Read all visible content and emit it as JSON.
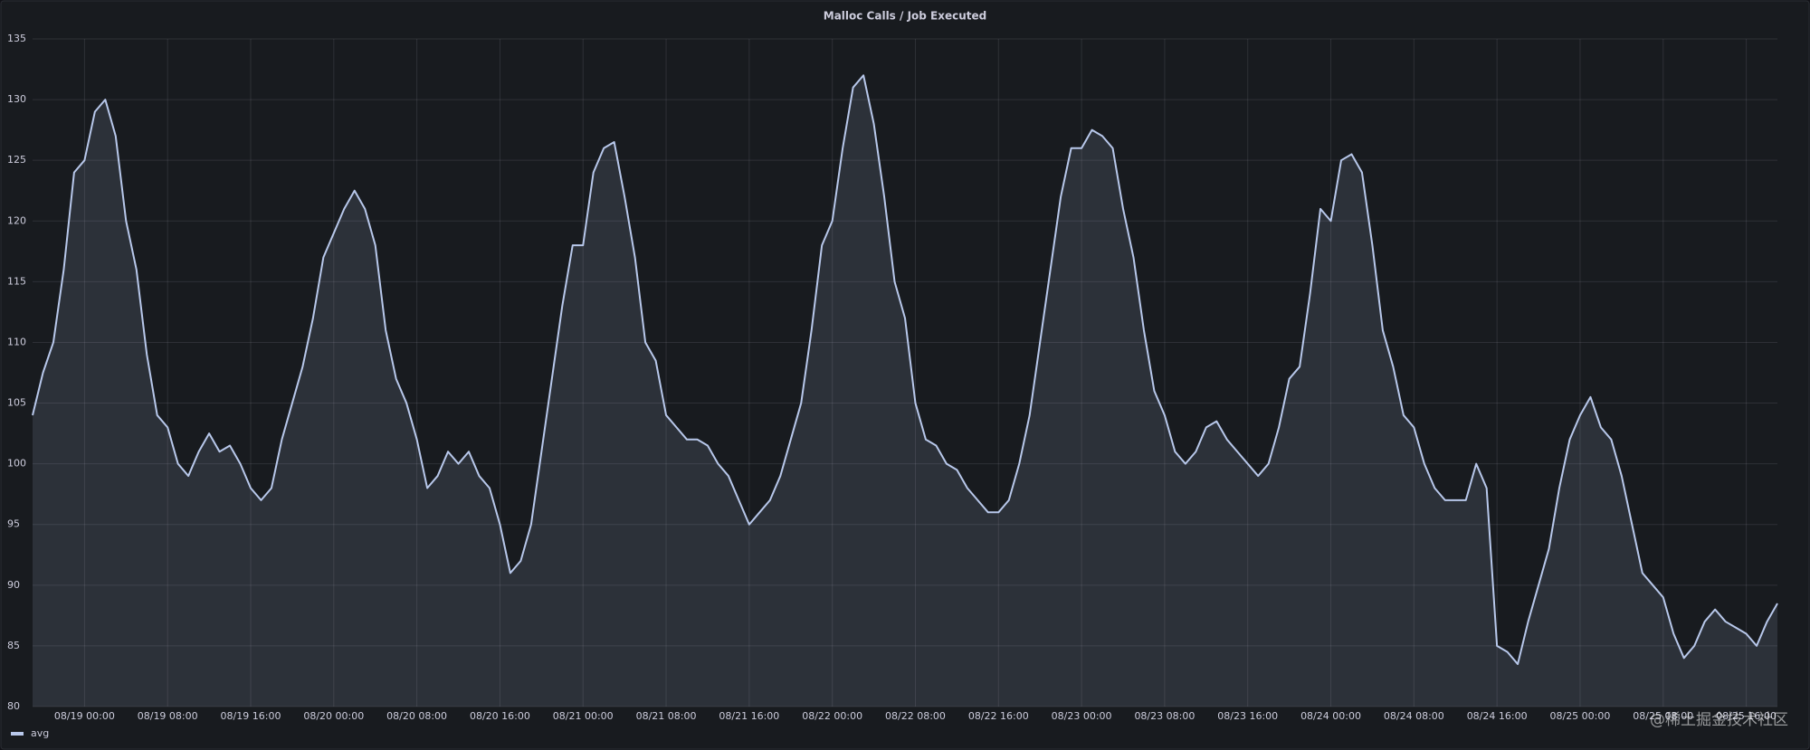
{
  "chart_data": {
    "type": "line",
    "title": "Malloc Calls / Job Executed",
    "x": [
      "08/18 19:00",
      "08/18 20:00",
      "08/18 21:00",
      "08/18 22:00",
      "08/18 23:00",
      "08/19 00:00",
      "08/19 01:00",
      "08/19 02:00",
      "08/19 03:00",
      "08/19 04:00",
      "08/19 05:00",
      "08/19 06:00",
      "08/19 07:00",
      "08/19 08:00",
      "08/19 09:00",
      "08/19 10:00",
      "08/19 11:00",
      "08/19 12:00",
      "08/19 13:00",
      "08/19 14:00",
      "08/19 15:00",
      "08/19 16:00",
      "08/19 17:00",
      "08/19 18:00",
      "08/19 19:00",
      "08/19 20:00",
      "08/19 21:00",
      "08/19 22:00",
      "08/19 23:00",
      "08/20 00:00",
      "08/20 01:00",
      "08/20 02:00",
      "08/20 03:00",
      "08/20 04:00",
      "08/20 05:00",
      "08/20 06:00",
      "08/20 07:00",
      "08/20 08:00",
      "08/20 09:00",
      "08/20 10:00",
      "08/20 11:00",
      "08/20 12:00",
      "08/20 13:00",
      "08/20 14:00",
      "08/20 15:00",
      "08/20 16:00",
      "08/20 17:00",
      "08/20 18:00",
      "08/20 19:00",
      "08/20 20:00",
      "08/20 21:00",
      "08/20 22:00",
      "08/20 23:00",
      "08/21 00:00",
      "08/21 01:00",
      "08/21 02:00",
      "08/21 03:00",
      "08/21 04:00",
      "08/21 05:00",
      "08/21 06:00",
      "08/21 07:00",
      "08/21 08:00",
      "08/21 09:00",
      "08/21 10:00",
      "08/21 11:00",
      "08/21 12:00",
      "08/21 13:00",
      "08/21 14:00",
      "08/21 15:00",
      "08/21 16:00",
      "08/21 17:00",
      "08/21 18:00",
      "08/21 19:00",
      "08/21 20:00",
      "08/21 21:00",
      "08/21 22:00",
      "08/21 23:00",
      "08/22 00:00",
      "08/22 01:00",
      "08/22 02:00",
      "08/22 03:00",
      "08/22 04:00",
      "08/22 05:00",
      "08/22 06:00",
      "08/22 07:00",
      "08/22 08:00",
      "08/22 09:00",
      "08/22 10:00",
      "08/22 11:00",
      "08/22 12:00",
      "08/22 13:00",
      "08/22 14:00",
      "08/22 15:00",
      "08/22 16:00",
      "08/22 17:00",
      "08/22 18:00",
      "08/22 19:00",
      "08/22 20:00",
      "08/22 21:00",
      "08/22 22:00",
      "08/22 23:00",
      "08/23 00:00",
      "08/23 01:00",
      "08/23 02:00",
      "08/23 03:00",
      "08/23 04:00",
      "08/23 05:00",
      "08/23 06:00",
      "08/23 07:00",
      "08/23 08:00",
      "08/23 09:00",
      "08/23 10:00",
      "08/23 11:00",
      "08/23 12:00",
      "08/23 13:00",
      "08/23 14:00",
      "08/23 15:00",
      "08/23 16:00",
      "08/23 17:00",
      "08/23 18:00",
      "08/23 19:00",
      "08/23 20:00",
      "08/23 21:00",
      "08/23 22:00",
      "08/23 23:00",
      "08/24 00:00",
      "08/24 01:00",
      "08/24 02:00",
      "08/24 03:00",
      "08/24 04:00",
      "08/24 05:00",
      "08/24 06:00",
      "08/24 07:00",
      "08/24 08:00",
      "08/24 09:00",
      "08/24 10:00",
      "08/24 11:00",
      "08/24 12:00",
      "08/24 13:00",
      "08/24 14:00",
      "08/24 15:00",
      "08/24 16:00",
      "08/24 17:00",
      "08/24 18:00",
      "08/24 19:00",
      "08/24 20:00",
      "08/24 21:00",
      "08/24 22:00",
      "08/24 23:00",
      "08/25 00:00",
      "08/25 01:00",
      "08/25 02:00",
      "08/25 03:00",
      "08/25 04:00",
      "08/25 05:00",
      "08/25 06:00",
      "08/25 07:00",
      "08/25 08:00",
      "08/25 09:00",
      "08/25 10:00",
      "08/25 11:00",
      "08/25 12:00",
      "08/25 13:00",
      "08/25 14:00",
      "08/25 15:00",
      "08/25 16:00",
      "08/25 17:00",
      "08/25 18:00",
      "08/25 19:00"
    ],
    "series": [
      {
        "name": "avg",
        "color": "#b8c8eb",
        "values": [
          104,
          107.5,
          110,
          116,
          124,
          125,
          129,
          130,
          127,
          120,
          116,
          109,
          104,
          103,
          100,
          99,
          101,
          102.5,
          101,
          101.5,
          100,
          98,
          97,
          98,
          102,
          105,
          108,
          112,
          117,
          119,
          121,
          122.5,
          121,
          118,
          111,
          107,
          105,
          102,
          98,
          99,
          101,
          100,
          101,
          99,
          98,
          95,
          91,
          92,
          95,
          101,
          107,
          113,
          118,
          118,
          124,
          126,
          126.5,
          122,
          117,
          110,
          108.5,
          104,
          103,
          102,
          102,
          101.5,
          100,
          99,
          97,
          95,
          96,
          97,
          99,
          102,
          105,
          111,
          118,
          120,
          126,
          131,
          132,
          128,
          122,
          115,
          112,
          105,
          102,
          101.5,
          100,
          99.5,
          98,
          97,
          96,
          96,
          97,
          100,
          104,
          110,
          116,
          122,
          126,
          126,
          127.5,
          127,
          126,
          121,
          117,
          111,
          106,
          104,
          101,
          100,
          101,
          103,
          103.5,
          102,
          101,
          100,
          99,
          100,
          103,
          107,
          108,
          114,
          121,
          120,
          125,
          125.5,
          124,
          118,
          111,
          108,
          104,
          103,
          100,
          98,
          97,
          97,
          97,
          100,
          98,
          85,
          84.5,
          83.5,
          87,
          90,
          93,
          98,
          102,
          104,
          105.5,
          103,
          102,
          99,
          95,
          91,
          90,
          89,
          86,
          84,
          85,
          87,
          88,
          87,
          86.5,
          86,
          85,
          87,
          88.5
        ]
      }
    ],
    "xlim": [
      "08/18 19:00",
      "08/25 19:00"
    ],
    "xticks": [
      "08/19 00:00",
      "08/19 08:00",
      "08/19 16:00",
      "08/20 00:00",
      "08/20 08:00",
      "08/20 16:00",
      "08/21 00:00",
      "08/21 08:00",
      "08/21 16:00",
      "08/22 00:00",
      "08/22 08:00",
      "08/22 16:00",
      "08/23 00:00",
      "08/23 08:00",
      "08/23 16:00",
      "08/24 00:00",
      "08/24 08:00",
      "08/24 16:00",
      "08/25 00:00",
      "08/25 08:00",
      "08/25 16:00"
    ],
    "ylim": [
      80,
      135
    ],
    "yticks": [
      80,
      85,
      90,
      95,
      100,
      105,
      110,
      115,
      120,
      125,
      130,
      135
    ],
    "grid": true
  },
  "watermark": "@稀土掘金技术社区"
}
